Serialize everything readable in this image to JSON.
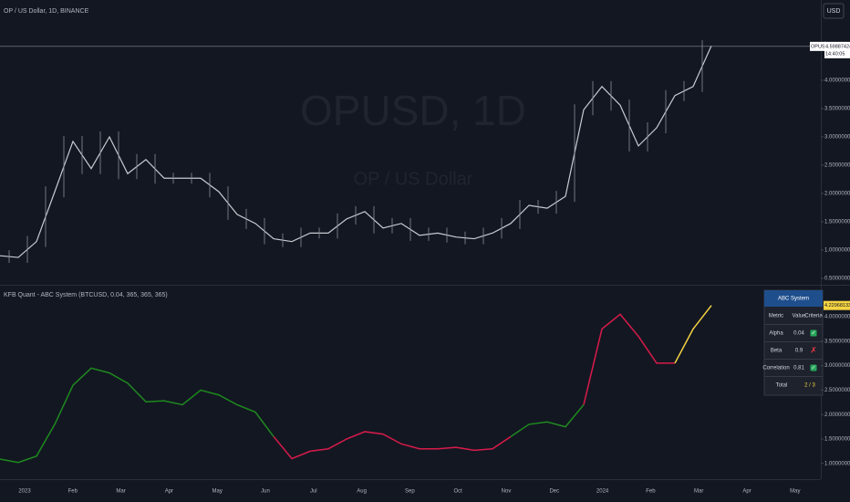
{
  "header": {
    "symbol_info": "OP / US Dollar, 1D, BINANCE",
    "currency_button": "USD",
    "watermark_main": "OPUSD, 1D",
    "watermark_sub": "OP / US Dollar"
  },
  "price_pane": {
    "ylim": [
      0.419,
      5.419
    ],
    "yticks": [
      {
        "value": 4,
        "label": "4.00000000"
      },
      {
        "value": 3.5,
        "label": "3.50000000"
      },
      {
        "value": 3,
        "label": "3.00000000"
      },
      {
        "value": 2.5,
        "label": "2.50000000"
      },
      {
        "value": 2,
        "label": "2.00000000"
      },
      {
        "value": 1.5,
        "label": "1.50000000"
      },
      {
        "value": 1,
        "label": "1.00000000"
      },
      {
        "value": 0.5,
        "label": "0.50000000"
      }
    ],
    "closes": [
      0.9,
      0.87,
      1.15,
      2.03,
      2.92,
      2.44,
      3.0,
      2.35,
      2.6,
      2.27,
      2.27,
      2.27,
      2.03,
      1.63,
      1.47,
      1.2,
      1.15,
      1.3,
      1.3,
      1.55,
      1.68,
      1.39,
      1.47,
      1.26,
      1.3,
      1.23,
      1.2,
      1.3,
      1.47,
      1.79,
      1.74,
      1.95,
      3.48,
      3.89,
      3.56,
      2.84,
      3.16,
      3.73,
      3.89,
      4.61
    ],
    "last_price": {
      "symbol": "OPUSD",
      "value": 4.59887424,
      "label": "4.59887424",
      "countdown": "14:40:05"
    }
  },
  "indicator_pane": {
    "title": "KFB Quant - ABC System (BTCUSD, 0.04, 365, 365, 365)",
    "ylim": [
      0.679,
      4.597
    ],
    "yticks": [
      {
        "value": 4,
        "label": "4.00000000"
      },
      {
        "value": 3.5,
        "label": "3.50000000"
      },
      {
        "value": 3,
        "label": "3.00000000"
      },
      {
        "value": 2.5,
        "label": "2.50000000"
      },
      {
        "value": 2,
        "label": "2.00000000"
      },
      {
        "value": 1.5,
        "label": "1.50000000"
      },
      {
        "value": 1,
        "label": "1.00000000"
      }
    ],
    "values": [
      1.09,
      1.02,
      1.15,
      1.8,
      2.6,
      2.95,
      2.85,
      2.64,
      2.26,
      2.28,
      2.2,
      2.5,
      2.4,
      2.2,
      2.05,
      1.55,
      1.1,
      1.25,
      1.3,
      1.5,
      1.65,
      1.6,
      1.4,
      1.3,
      1.3,
      1.33,
      1.27,
      1.3,
      1.55,
      1.8,
      1.85,
      1.75,
      2.2,
      3.75,
      4.05,
      3.6,
      3.05,
      3.05,
      3.75,
      4.23
    ],
    "colors": [
      "#f5d442",
      "#f5d442",
      "#f5d442",
      "#f5d442",
      "#f5d442",
      "#f5d442",
      "#f5d442",
      "#f5d442",
      "#f5d442",
      "#f5d442",
      "#f5d442",
      "#f5d442",
      "#f5d442",
      "#f5d442",
      "#f5d442",
      "#1e8a1e",
      "#1e8a1e",
      "#1e8a1e",
      "#1e8a1e",
      "#1e8a1e",
      "#1e8a1e",
      "#1e8a1e",
      "#1e8a1e",
      "#1e8a1e",
      "#1e8a1e",
      "#1e8a1e",
      "#1e8a1e",
      "#1e8a1e",
      "#d81b4a",
      "#d81b4a",
      "#d81b4a",
      "#d81b4a",
      "#1e8a1e",
      "#1e8a1e",
      "#1e8a1e",
      "#1e8a1e",
      "#1e8a1e",
      "#d81b4a",
      "#d81b4a",
      "#f5d442"
    ],
    "last": {
      "value": 4.22968133,
      "label": "4.22968133"
    }
  },
  "time_axis": [
    "2023",
    "Feb",
    "Mar",
    "Apr",
    "May",
    "Jun",
    "Jul",
    "Aug",
    "Sep",
    "Oct",
    "Nov",
    "Dec",
    "2024",
    "Feb",
    "Mar",
    "Apr",
    "May"
  ],
  "table": {
    "title": "ABC System",
    "columns": [
      "Metric",
      "Value",
      "Criteria"
    ],
    "rows": [
      [
        "Alpha",
        "0.04",
        "✓"
      ],
      [
        "Beta",
        "0.9",
        "✗"
      ],
      [
        "Correlation",
        "0.81",
        "✓"
      ]
    ],
    "total": [
      "Total",
      "2 / 3"
    ]
  }
}
